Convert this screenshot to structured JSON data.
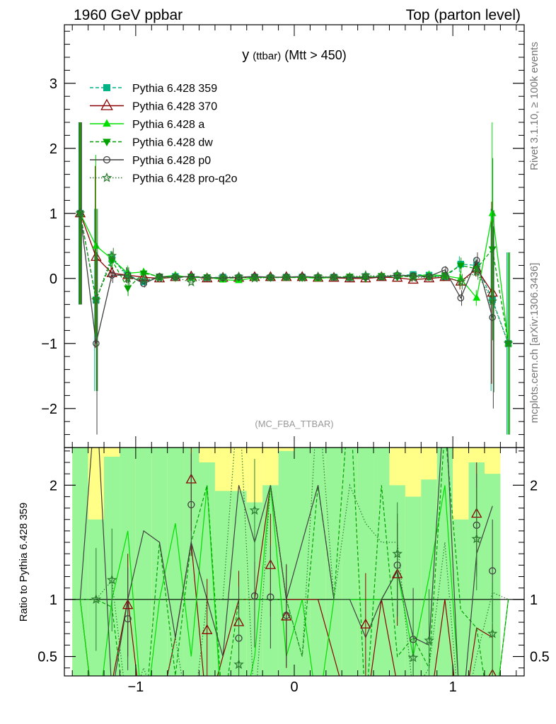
{
  "header": {
    "left": "1960 GeV ppbar",
    "right": "Top (parton level)"
  },
  "side_labels": {
    "rivet": "Rivet 3.1.10, ≥ 100k events",
    "mcplots": "mcplots.cern.ch [arXiv:1306.3436]"
  },
  "chart_data": [
    {
      "type": "line",
      "panel": "main",
      "title": "y (ttbar) (Mtt > 450)",
      "title_main": "y",
      "title_sub": "(ttbar)",
      "title_tail": "(Mtt > 450)",
      "watermark": "(MC_FBA_TTBAR)",
      "xlim": [
        -1.45,
        1.45
      ],
      "ylim": [
        -2.6,
        3.9
      ],
      "x_ticks": [
        -1,
        0,
        1
      ],
      "x_tick_labels": [
        "−1",
        "0",
        "1"
      ],
      "y_ticks": [
        -2,
        -1,
        0,
        1,
        2,
        3
      ],
      "y_tick_labels": [
        "−2",
        "−1",
        "0",
        "1",
        "2",
        "3"
      ],
      "x": [
        -1.35,
        -1.25,
        -1.15,
        -1.05,
        -0.95,
        -0.85,
        -0.75,
        -0.65,
        -0.55,
        -0.45,
        -0.35,
        -0.25,
        -0.15,
        -0.05,
        0.05,
        0.15,
        0.25,
        0.35,
        0.45,
        0.55,
        0.65,
        0.75,
        0.85,
        0.95,
        1.05,
        1.15,
        1.25,
        1.35
      ],
      "series": [
        {
          "name": "Pythia 6.428 359",
          "color": "#00b386",
          "marker": "square",
          "dash": "5,3",
          "values": [
            1.0,
            -0.33,
            0.3,
            0.05,
            -0.05,
            0.02,
            0.03,
            0.02,
            0.01,
            0.02,
            0.01,
            0.02,
            0.01,
            0.02,
            0.02,
            0.01,
            0.02,
            0.01,
            0.03,
            0.02,
            0.04,
            0.06,
            0.05,
            0.02,
            0.22,
            0.2,
            -0.33,
            -1.0
          ]
        },
        {
          "name": "Pythia 6.428 370",
          "color": "#8b0000",
          "marker": "triangle-open",
          "dash": "",
          "values": [
            1.0,
            0.33,
            0.08,
            0.05,
            0.02,
            0.0,
            0.02,
            0.03,
            0.0,
            0.01,
            0.01,
            0.02,
            0.02,
            0.02,
            0.02,
            0.01,
            0.01,
            0.0,
            0.0,
            0.02,
            0.01,
            -0.02,
            0.0,
            0.02,
            -0.05,
            0.15,
            -0.22,
            null
          ]
        },
        {
          "name": "Pythia 6.428 a",
          "color": "#00e000",
          "marker": "triangle",
          "dash": "",
          "values": [
            1.0,
            0.5,
            0.3,
            0.08,
            0.1,
            0.02,
            0.05,
            0.01,
            0.02,
            -0.02,
            -0.03,
            0.01,
            0.02,
            0.01,
            0.02,
            0.0,
            0.02,
            0.01,
            0.03,
            0.02,
            0.05,
            0.03,
            0.06,
            0.04,
            0.0,
            -0.3,
            1.0,
            -1.0
          ]
        },
        {
          "name": "Pythia 6.428 dw",
          "color": "#00a000",
          "marker": "triangle-down",
          "dash": "5,3",
          "values": [
            1.0,
            -0.33,
            0.28,
            -0.15,
            0.08,
            0.03,
            0.01,
            0.03,
            0.02,
            0.0,
            0.01,
            0.02,
            0.01,
            0.02,
            0.01,
            0.02,
            0.02,
            0.03,
            0.0,
            0.04,
            0.02,
            0.04,
            0.02,
            0.05,
            0.2,
            0.15,
            0.45,
            -1.0
          ]
        },
        {
          "name": "Pythia 6.428 p0",
          "color": "#404040",
          "marker": "circle-open",
          "dash": "",
          "values": [
            1.0,
            -1.0,
            0.05,
            0.05,
            -0.08,
            0.03,
            0.02,
            0.03,
            0.01,
            0.01,
            0.02,
            0.03,
            0.02,
            0.02,
            0.03,
            0.02,
            0.02,
            0.01,
            0.02,
            0.02,
            0.05,
            0.04,
            0.03,
            0.13,
            -0.3,
            0.28,
            -0.6,
            null
          ]
        },
        {
          "name": "Pythia 6.428 pro-q2o",
          "color": "#2e7d32",
          "marker": "star-open",
          "dash": "1.5,2.5",
          "values": [
            1.0,
            -0.33,
            0.35,
            0.0,
            -0.02,
            0.0,
            0.02,
            -0.06,
            0.01,
            0.02,
            0.03,
            0.0,
            0.02,
            0.02,
            0.01,
            0.03,
            0.02,
            0.02,
            0.05,
            0.03,
            0.06,
            0.01,
            0.02,
            0.03,
            -0.05,
            0.1,
            -0.35,
            -1.0
          ]
        }
      ]
    },
    {
      "type": "line",
      "panel": "ratio",
      "ylabel": "Ratio to Pythia 6.428 359",
      "xlim": [
        -1.45,
        1.45
      ],
      "ylim": [
        0.33,
        2.33
      ],
      "y_ticks": [
        0.5,
        1,
        2
      ],
      "y_tick_labels": [
        "0.5",
        "1",
        "2"
      ],
      "band_yellow_top": [
        2.33,
        2.33,
        2.33,
        2.33,
        2.33,
        2.33,
        2.33,
        2.33,
        2.33,
        2.33,
        2.33,
        2.33,
        2.33,
        2.33,
        2.33,
        2.33,
        2.33,
        2.33,
        2.33,
        2.33,
        2.33,
        2.33,
        2.33,
        2.33,
        2.33,
        2.33,
        2.33,
        2.33
      ],
      "band_green_top": [
        2.33,
        1.7,
        2.25,
        2.33,
        2.33,
        2.33,
        2.33,
        2.33,
        2.2,
        1.95,
        1.95,
        1.85,
        2.0,
        2.3,
        2.33,
        2.33,
        2.33,
        2.33,
        2.33,
        2.33,
        2.0,
        1.9,
        2.05,
        2.33,
        1.7,
        2.2,
        2.1,
        null
      ],
      "x": [
        -1.25,
        -1.15,
        -1.05,
        -0.65,
        -0.55,
        -0.35,
        -0.25,
        -0.15,
        -0.05,
        0.45,
        0.65,
        0.75,
        0.85,
        1.15,
        1.25
      ],
      "series": [
        {
          "name": "Pythia 6.428 370",
          "values": [
            null,
            null,
            0.95,
            2.05,
            0.73,
            0.8,
            null,
            1.3,
            0.85,
            0.78,
            1.22,
            null,
            null,
            1.75,
            0.34
          ]
        },
        {
          "name": "Pythia 6.428 p0",
          "values": [
            null,
            null,
            0.83,
            1.83,
            null,
            0.66,
            1.03,
            1.02,
            0.86,
            null,
            1.3,
            0.65,
            null,
            1.65,
            1.25
          ]
        },
        {
          "name": "Pythia 6.428 pro-q2o",
          "values": [
            1.0,
            1.17,
            null,
            null,
            null,
            0.43,
            1.78,
            null,
            null,
            null,
            1.4,
            0.49,
            0.64,
            1.53,
            0.7
          ]
        }
      ]
    }
  ]
}
